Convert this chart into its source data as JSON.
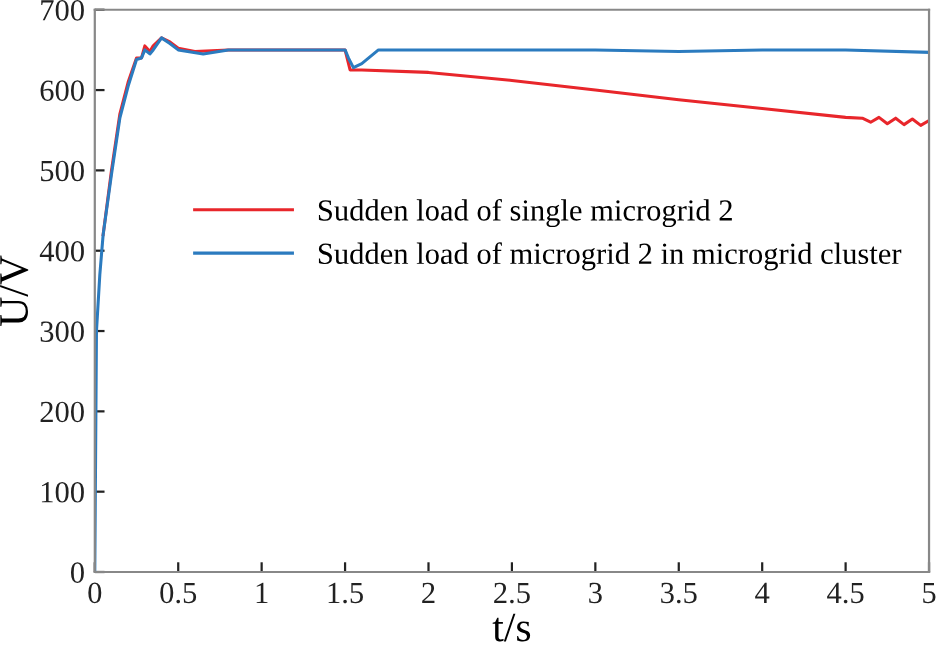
{
  "chart_data": {
    "type": "line",
    "xlabel": "t/s",
    "ylabel": "U/V",
    "xlim": [
      0,
      5
    ],
    "ylim": [
      0,
      700
    ],
    "xticks": [
      0,
      0.5,
      1,
      1.5,
      2,
      2.5,
      3,
      3.5,
      4,
      4.5,
      5
    ],
    "yticks": [
      0,
      100,
      200,
      300,
      400,
      500,
      600,
      700
    ],
    "grid": false,
    "legend": "right",
    "line_style": "solid",
    "marker": "none",
    "series": [
      {
        "name": "Sudden load of single microgrid 2",
        "color": "#e8262b",
        "x": [
          0.05,
          0.1,
          0.15,
          0.2,
          0.25,
          0.28,
          0.3,
          0.33,
          0.35,
          0.4,
          0.45,
          0.5,
          0.6,
          0.8,
          1.0,
          1.5,
          1.53,
          1.6,
          2,
          2.5,
          3,
          3.5,
          4,
          4.5,
          4.6,
          4.65,
          4.7,
          4.75,
          4.8,
          4.85,
          4.9,
          4.95,
          5
        ],
        "values": [
          420,
          500,
          570,
          610,
          640,
          640,
          655,
          648,
          655,
          665,
          660,
          652,
          648,
          650,
          650,
          650,
          625,
          625,
          622,
          612,
          600,
          588,
          577,
          566,
          565,
          560,
          566,
          558,
          565,
          557,
          564,
          556,
          562
        ]
      },
      {
        "name": "Sudden load of microgrid 2 in microgrid cluster",
        "color": "#2b7bbf",
        "x": [
          0,
          0.01,
          0.03,
          0.05,
          0.1,
          0.15,
          0.2,
          0.25,
          0.28,
          0.3,
          0.33,
          0.35,
          0.4,
          0.45,
          0.5,
          0.65,
          0.8,
          1.0,
          1.5,
          1.52,
          1.55,
          1.6,
          1.7,
          2,
          2.5,
          3,
          3.5,
          4,
          4.5,
          5
        ],
        "values": [
          0,
          300,
          370,
          420,
          495,
          565,
          605,
          638,
          640,
          650,
          645,
          650,
          665,
          658,
          650,
          645,
          650,
          650,
          650,
          640,
          628,
          633,
          650,
          650,
          650,
          650,
          648,
          650,
          650,
          647
        ]
      }
    ]
  }
}
